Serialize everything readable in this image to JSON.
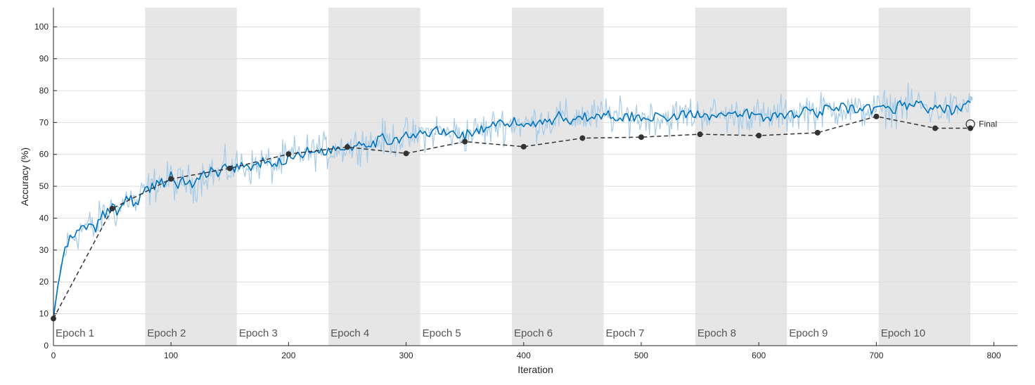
{
  "chart_data": {
    "type": "line",
    "xlabel": "Iteration",
    "ylabel": "Accuracy (%)",
    "xlim": [
      0,
      820
    ],
    "ylim": [
      0,
      106
    ],
    "xticks": [
      0,
      100,
      200,
      300,
      400,
      500,
      600,
      700,
      800
    ],
    "yticks": [
      0,
      10,
      20,
      30,
      40,
      50,
      60,
      70,
      80,
      90,
      100
    ],
    "grid": "horizontal",
    "colors": {
      "raw": "#a6cbe8",
      "smoothed": "#0072bd",
      "validation": "#333333",
      "epoch_band": "#e6e6e6",
      "grid": "#dcdcdc"
    },
    "epochs": [
      {
        "label": "Epoch 1",
        "start": 0,
        "end": 78,
        "shaded": false
      },
      {
        "label": "Epoch 2",
        "start": 78,
        "end": 156,
        "shaded": true
      },
      {
        "label": "Epoch 3",
        "start": 156,
        "end": 234,
        "shaded": false
      },
      {
        "label": "Epoch 4",
        "start": 234,
        "end": 312,
        "shaded": true
      },
      {
        "label": "Epoch 5",
        "start": 312,
        "end": 390,
        "shaded": false
      },
      {
        "label": "Epoch 6",
        "start": 390,
        "end": 468,
        "shaded": true
      },
      {
        "label": "Epoch 7",
        "start": 468,
        "end": 546,
        "shaded": false
      },
      {
        "label": "Epoch 8",
        "start": 546,
        "end": 624,
        "shaded": true
      },
      {
        "label": "Epoch 9",
        "start": 624,
        "end": 702,
        "shaded": false
      },
      {
        "label": "Epoch 10",
        "start": 702,
        "end": 780,
        "shaded": true
      }
    ],
    "series": [
      {
        "style": "smoothed",
        "x": [
          0,
          5,
          10,
          15,
          20,
          25,
          30,
          35,
          40,
          45,
          50,
          55,
          60,
          65,
          70,
          75,
          80,
          85,
          90,
          95,
          100,
          105,
          110,
          115,
          120,
          125,
          130,
          135,
          140,
          145,
          150,
          155,
          160,
          165,
          170,
          175,
          180,
          185,
          190,
          195,
          200,
          205,
          210,
          215,
          220,
          225,
          230,
          235,
          240,
          245,
          250,
          255,
          260,
          265,
          270,
          275,
          280,
          285,
          290,
          295,
          300,
          305,
          310,
          315,
          320,
          325,
          330,
          335,
          340,
          345,
          350,
          355,
          360,
          365,
          370,
          375,
          380,
          385,
          390,
          395,
          400,
          405,
          410,
          415,
          420,
          425,
          430,
          435,
          440,
          445,
          450,
          455,
          460,
          465,
          470,
          475,
          480,
          485,
          490,
          495,
          500,
          505,
          510,
          515,
          520,
          525,
          530,
          535,
          540,
          545,
          550,
          555,
          560,
          565,
          570,
          575,
          580,
          585,
          590,
          595,
          600,
          605,
          610,
          615,
          620,
          625,
          630,
          635,
          640,
          645,
          650,
          655,
          660,
          665,
          670,
          675,
          680,
          685,
          690,
          695,
          700,
          705,
          710,
          715,
          720,
          725,
          730,
          735,
          740,
          745,
          750,
          755,
          760,
          765,
          770,
          775,
          780
        ],
        "y": [
          8.5,
          22,
          30,
          34,
          35,
          37,
          38,
          36,
          40,
          42,
          43,
          42,
          45,
          47,
          44,
          47,
          49,
          50,
          52,
          51,
          53,
          50,
          52,
          51,
          50,
          53,
          54,
          55,
          53,
          56,
          55,
          56,
          57,
          56,
          56,
          57,
          58,
          56,
          57,
          58,
          59,
          60,
          60,
          61,
          60,
          62,
          61,
          61,
          62,
          62,
          63,
          62,
          64,
          64,
          63,
          64,
          65,
          64,
          65,
          65,
          66,
          65,
          66,
          67,
          66,
          68,
          67,
          66,
          67,
          66,
          66,
          67,
          67,
          68,
          67,
          69,
          70,
          69,
          70,
          70,
          69,
          70,
          70,
          71,
          70,
          71,
          72,
          71,
          71,
          72,
          72,
          71,
          72,
          72,
          73,
          72,
          72,
          71,
          72,
          72,
          71,
          72,
          72,
          71,
          72,
          71,
          72,
          72,
          73,
          72,
          73,
          73,
          72,
          73,
          72,
          72,
          72,
          72,
          73,
          72,
          72,
          71,
          72,
          72,
          73,
          72,
          73,
          73,
          74,
          74,
          73,
          74,
          74,
          74,
          75,
          74,
          74,
          73,
          74,
          74,
          74,
          74,
          75,
          74,
          76,
          75,
          76,
          76,
          75,
          74,
          75,
          74,
          74,
          74,
          75,
          75,
          76
        ]
      },
      {
        "style": "validation",
        "x": [
          0,
          50,
          100,
          150,
          200,
          250,
          300,
          350,
          400,
          450,
          500,
          550,
          600,
          650,
          700,
          750,
          780
        ],
        "y": [
          8.5,
          43,
          52.3,
          55.6,
          60.1,
          62.3,
          60.3,
          64.0,
          62.4,
          65.1,
          65.4,
          66.3,
          65.9,
          66.8,
          71.9,
          68.2,
          68.2
        ]
      }
    ],
    "annotations": [
      {
        "text": "Final",
        "x": 780,
        "y": 69.5
      }
    ]
  }
}
